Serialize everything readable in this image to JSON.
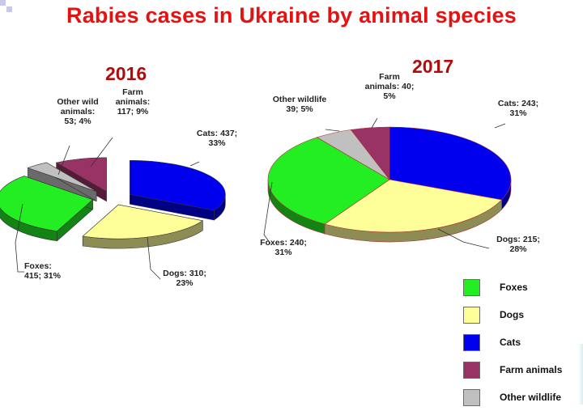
{
  "title": "Rabies cases in Ukraine by animal species",
  "colors": {
    "title": "#e41212",
    "year": "#b30b0b",
    "foxes": "#22ee22",
    "dogs": "#ffff99",
    "cats": "#0000ee",
    "farm": "#993366",
    "other": "#c0c0c0"
  },
  "legend": [
    {
      "label": "Foxes",
      "color": "#22ee22"
    },
    {
      "label": "Dogs",
      "color": "#ffff99"
    },
    {
      "label": "Cats",
      "color": "#0000ee"
    },
    {
      "label": "Farm animals",
      "color": "#993366"
    },
    {
      "label": "Other wildlife",
      "color": "#c0c0c0"
    }
  ],
  "chart_data": [
    {
      "type": "pie",
      "title": "2016",
      "style": "3d-exploded",
      "slices": [
        {
          "category": "Cats",
          "value": 437,
          "percent": 33,
          "label_lines": [
            "Cats: 437;",
            "33%"
          ],
          "color": "#0000ee"
        },
        {
          "category": "Dogs",
          "value": 310,
          "percent": 23,
          "label_lines": [
            "Dogs: 310;",
            "23%"
          ],
          "color": "#ffff99"
        },
        {
          "category": "Foxes",
          "value": 415,
          "percent": 31,
          "label_lines": [
            "Foxes:",
            "415; 31%"
          ],
          "color": "#22ee22"
        },
        {
          "category": "Other wild animals",
          "value": 53,
          "percent": 4,
          "label_lines": [
            "Other wild",
            "animals:",
            "53; 4%"
          ],
          "color": "#c0c0c0"
        },
        {
          "category": "Farm animals",
          "value": 117,
          "percent": 9,
          "label_lines": [
            "Farm",
            "animals:",
            "117; 9%"
          ],
          "color": "#993366"
        }
      ]
    },
    {
      "type": "pie",
      "title": "2017",
      "style": "3d",
      "slices": [
        {
          "category": "Cats",
          "value": 243,
          "percent": 31,
          "label_lines": [
            "Cats: 243;",
            "31%"
          ],
          "color": "#0000ee"
        },
        {
          "category": "Dogs",
          "value": 215,
          "percent": 28,
          "label_lines": [
            "Dogs: 215;",
            "28%"
          ],
          "color": "#ffff99"
        },
        {
          "category": "Foxes",
          "value": 240,
          "percent": 31,
          "label_lines": [
            "Foxes: 240;",
            "31%"
          ],
          "color": "#22ee22"
        },
        {
          "category": "Other wildlife",
          "value": 39,
          "percent": 5,
          "label_lines": [
            "Other wildlife",
            "39; 5%"
          ],
          "color": "#c0c0c0"
        },
        {
          "category": "Farm animals",
          "value": 40,
          "percent": 5,
          "label_lines": [
            "Farm",
            "animals: 40;",
            "5%"
          ],
          "color": "#993366"
        }
      ]
    }
  ]
}
